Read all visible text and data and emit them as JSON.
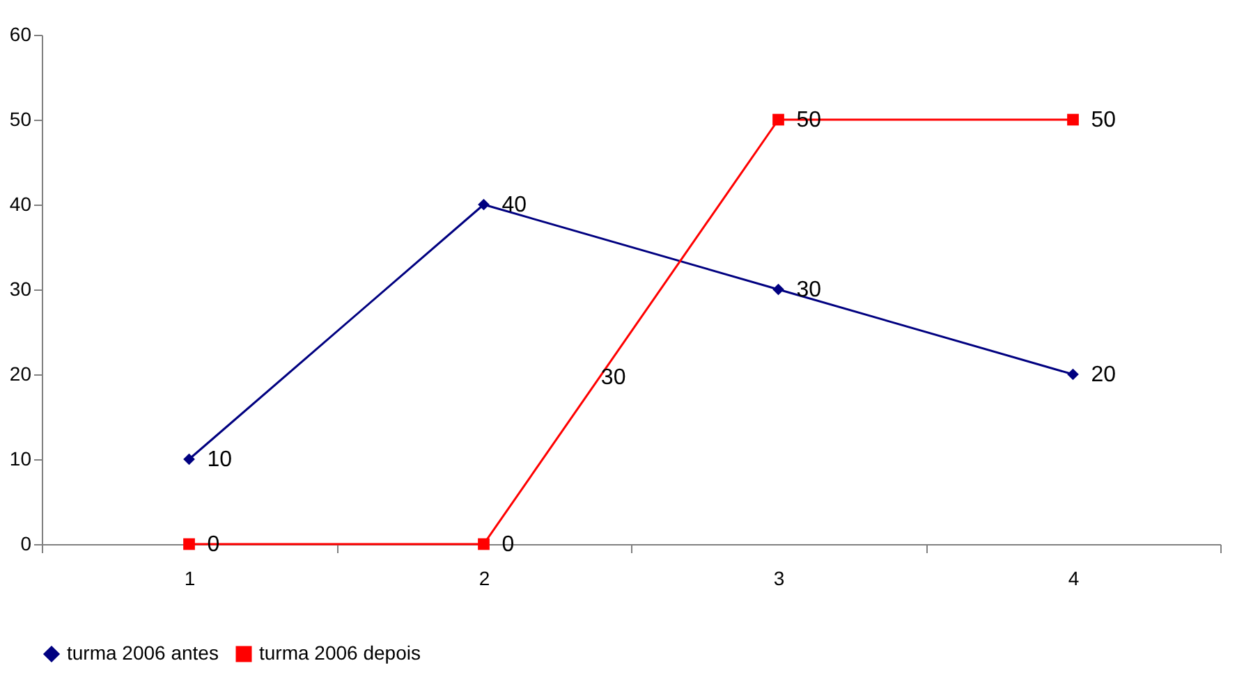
{
  "chart_data": {
    "type": "line",
    "categories": [
      "1",
      "2",
      "3",
      "4"
    ],
    "series": [
      {
        "name": "turma 2006 antes",
        "color": "#000080",
        "marker": "diamond",
        "values": [
          10,
          40,
          30,
          20
        ]
      },
      {
        "name": "turma 2006 depois",
        "color": "#ff0000",
        "marker": "square",
        "values": [
          0,
          0,
          50,
          50
        ]
      }
    ],
    "ylim": [
      0,
      60
    ],
    "yticks": [
      0,
      10,
      20,
      30,
      40,
      50,
      60
    ],
    "grid": false,
    "legend": "bottom",
    "data_labels": true,
    "line_style": "solid",
    "annotations": [
      "30"
    ]
  }
}
